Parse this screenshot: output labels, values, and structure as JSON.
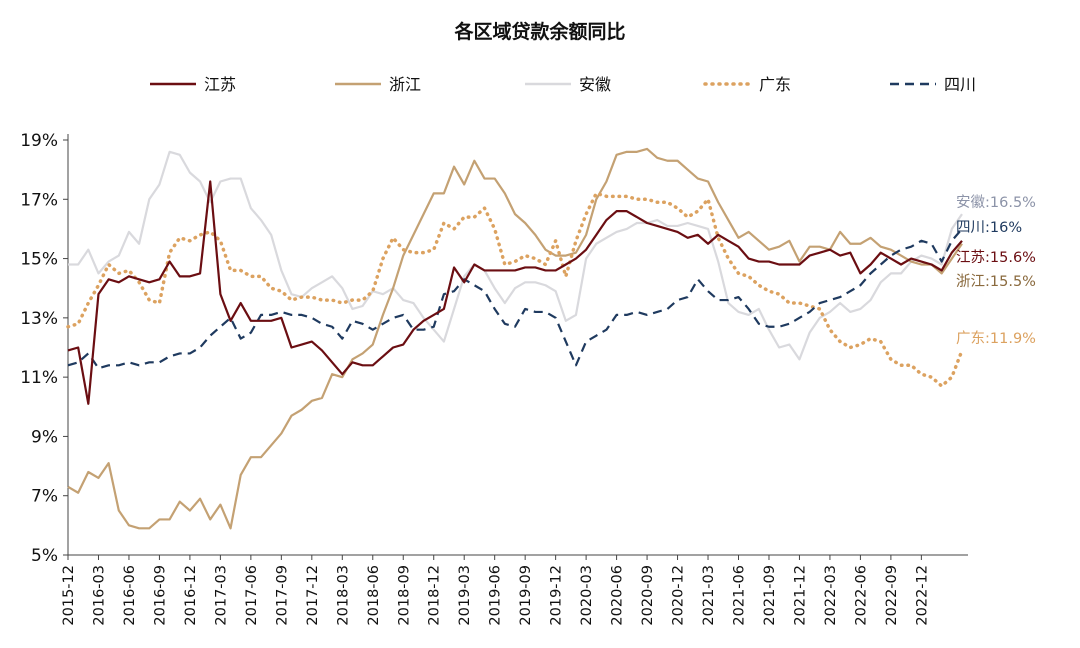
{
  "chart_data": {
    "type": "line",
    "title": "各区域贷款余额同比",
    "xlabel": "",
    "ylabel": "",
    "ylim": [
      5,
      19
    ],
    "yticks": [
      5,
      7,
      9,
      11,
      13,
      15,
      17,
      19
    ],
    "ytick_labels": [
      "5%",
      "7%",
      "9%",
      "11%",
      "13%",
      "15%",
      "17%",
      "19%"
    ],
    "x_start": "2015-12",
    "x_end": "2023-03",
    "xtick_labels": [
      "2015-12",
      "2016-03",
      "2016-06",
      "2016-09",
      "2016-12",
      "2017-03",
      "2017-06",
      "2017-09",
      "2017-12",
      "2018-03",
      "2018-06",
      "2018-09",
      "2018-12",
      "2019-03",
      "2019-06",
      "2019-09",
      "2019-12",
      "2020-03",
      "2020-06",
      "2020-09",
      "2020-12",
      "2021-03",
      "2021-06",
      "2021-09",
      "2021-12",
      "2022-03",
      "2022-06",
      "2022-09",
      "2022-12"
    ],
    "legend_position": "top",
    "series": [
      {
        "name": "江苏",
        "color": "#6B0E12",
        "style": "solid",
        "end_label": "江苏:15.6%",
        "values": [
          11.9,
          12.0,
          10.1,
          13.8,
          14.3,
          14.2,
          14.4,
          14.3,
          14.2,
          14.3,
          14.9,
          14.4,
          14.4,
          14.5,
          17.6,
          13.8,
          12.9,
          13.5,
          12.9,
          12.9,
          12.9,
          13.0,
          12.0,
          12.1,
          12.2,
          11.9,
          11.5,
          11.1,
          11.5,
          11.4,
          11.4,
          11.7,
          12.0,
          12.1,
          12.6,
          12.9,
          13.1,
          13.3,
          14.7,
          14.2,
          14.8,
          14.6,
          14.6,
          14.6,
          14.6,
          14.7,
          14.7,
          14.6,
          14.6,
          14.8,
          15.0,
          15.3,
          15.8,
          16.3,
          16.6,
          16.6,
          16.4,
          16.2,
          16.1,
          16.0,
          15.9,
          15.7,
          15.8,
          15.5,
          15.8,
          15.6,
          15.4,
          15.0,
          14.9,
          14.9,
          14.8,
          14.8,
          14.8,
          15.1,
          15.2,
          15.3,
          15.1,
          15.2,
          14.5,
          14.8,
          15.2,
          15.0,
          14.8,
          15.0,
          14.9,
          14.8,
          14.6,
          15.2,
          15.6
        ]
      },
      {
        "name": "浙江",
        "color": "#C4A173",
        "style": "solid",
        "end_label": "浙江:15.5%",
        "values": [
          7.3,
          7.1,
          7.8,
          7.6,
          8.1,
          6.5,
          6.0,
          5.9,
          5.9,
          6.2,
          6.2,
          6.8,
          6.5,
          6.9,
          6.2,
          6.7,
          5.9,
          7.7,
          8.3,
          8.3,
          8.7,
          9.1,
          9.7,
          9.9,
          10.2,
          10.3,
          11.1,
          11.0,
          11.6,
          11.8,
          12.1,
          13.1,
          14.0,
          15.1,
          15.8,
          16.5,
          17.2,
          17.2,
          18.1,
          17.5,
          18.3,
          17.7,
          17.7,
          17.2,
          16.5,
          16.2,
          15.8,
          15.3,
          15.1,
          15.1,
          15.2,
          15.8,
          17.0,
          17.6,
          18.5,
          18.6,
          18.6,
          18.7,
          18.4,
          18.3,
          18.3,
          18.0,
          17.7,
          17.6,
          16.9,
          16.3,
          15.7,
          15.9,
          15.6,
          15.3,
          15.4,
          15.6,
          14.9,
          15.4,
          15.4,
          15.3,
          15.9,
          15.5,
          15.5,
          15.7,
          15.4,
          15.3,
          15.1,
          14.9,
          14.8,
          14.8,
          14.5,
          15.0,
          15.5
        ]
      },
      {
        "name": "安徽",
        "color": "#D9D9DD",
        "style": "solid",
        "end_label": "安徽:16.5%",
        "values": [
          14.8,
          14.8,
          15.3,
          14.5,
          14.9,
          15.1,
          15.9,
          15.5,
          17.0,
          17.5,
          18.6,
          18.5,
          17.9,
          17.6,
          16.9,
          17.6,
          17.7,
          17.7,
          16.7,
          16.3,
          15.8,
          14.6,
          13.8,
          13.7,
          14.0,
          14.2,
          14.4,
          14.0,
          13.3,
          13.4,
          13.9,
          13.8,
          14.0,
          13.6,
          13.5,
          13.0,
          12.6,
          12.2,
          13.3,
          14.4,
          14.8,
          14.6,
          14.0,
          13.5,
          14.0,
          14.2,
          14.2,
          14.1,
          13.9,
          12.9,
          13.1,
          15.0,
          15.5,
          15.7,
          15.9,
          16.0,
          16.2,
          16.2,
          16.3,
          16.1,
          16.1,
          16.2,
          16.1,
          16.0,
          14.9,
          13.5,
          13.2,
          13.1,
          13.3,
          12.6,
          12.0,
          12.1,
          11.6,
          12.5,
          13.0,
          13.2,
          13.5,
          13.2,
          13.3,
          13.6,
          14.2,
          14.5,
          14.5,
          14.9,
          15.1,
          15.0,
          14.8,
          16.0,
          16.5
        ]
      },
      {
        "name": "广东",
        "color": "#DCA260",
        "style": "dotted",
        "end_label": "广东:11.9%",
        "values": [
          12.7,
          12.8,
          13.5,
          14.1,
          14.8,
          14.5,
          14.6,
          14.2,
          13.6,
          13.5,
          15.2,
          15.7,
          15.6,
          15.8,
          15.9,
          15.6,
          14.6,
          14.6,
          14.4,
          14.4,
          14.0,
          13.9,
          13.6,
          13.7,
          13.7,
          13.6,
          13.6,
          13.5,
          13.6,
          13.6,
          13.9,
          15.0,
          15.7,
          15.3,
          15.2,
          15.2,
          15.3,
          16.2,
          16.0,
          16.4,
          16.4,
          16.7,
          16.0,
          14.8,
          14.9,
          15.1,
          15.0,
          14.8,
          15.6,
          14.4,
          15.6,
          16.5,
          17.2,
          17.1,
          17.1,
          17.1,
          17.0,
          17.0,
          16.9,
          16.9,
          16.7,
          16.4,
          16.6,
          17.0,
          15.7,
          15.0,
          14.5,
          14.4,
          14.1,
          13.9,
          13.8,
          13.5,
          13.5,
          13.4,
          13.3,
          12.6,
          12.2,
          12.0,
          12.1,
          12.3,
          12.2,
          11.6,
          11.4,
          11.4,
          11.1,
          11.0,
          10.7,
          11.0,
          11.9
        ]
      },
      {
        "name": "四川",
        "color": "#1F3A5F",
        "style": "dashed",
        "end_label": "四川:16%",
        "values": [
          11.4,
          11.5,
          11.8,
          11.3,
          11.4,
          11.4,
          11.5,
          11.4,
          11.5,
          11.5,
          11.7,
          11.8,
          11.8,
          12.0,
          12.4,
          12.7,
          13.0,
          12.3,
          12.5,
          13.1,
          13.1,
          13.2,
          13.1,
          13.1,
          13.0,
          12.8,
          12.7,
          12.3,
          12.9,
          12.8,
          12.6,
          12.8,
          13.0,
          13.1,
          12.6,
          12.6,
          12.7,
          13.8,
          13.9,
          14.3,
          14.1,
          13.9,
          13.3,
          12.8,
          12.7,
          13.3,
          13.2,
          13.2,
          13.0,
          12.2,
          11.4,
          12.2,
          12.4,
          12.6,
          13.1,
          13.1,
          13.2,
          13.1,
          13.2,
          13.3,
          13.6,
          13.7,
          14.3,
          13.9,
          13.6,
          13.6,
          13.7,
          13.3,
          12.8,
          12.7,
          12.7,
          12.8,
          13.0,
          13.2,
          13.5,
          13.6,
          13.7,
          13.9,
          14.1,
          14.5,
          14.8,
          15.1,
          15.3,
          15.4,
          15.6,
          15.5,
          14.9,
          15.6,
          16.0
        ]
      }
    ],
    "end_label_colors": {
      "安徽": "#8C93A8",
      "四川": "#1F3A5F",
      "江苏": "#6B0E12",
      "浙江": "#8A6A3E",
      "广东": "#DCA260"
    }
  }
}
